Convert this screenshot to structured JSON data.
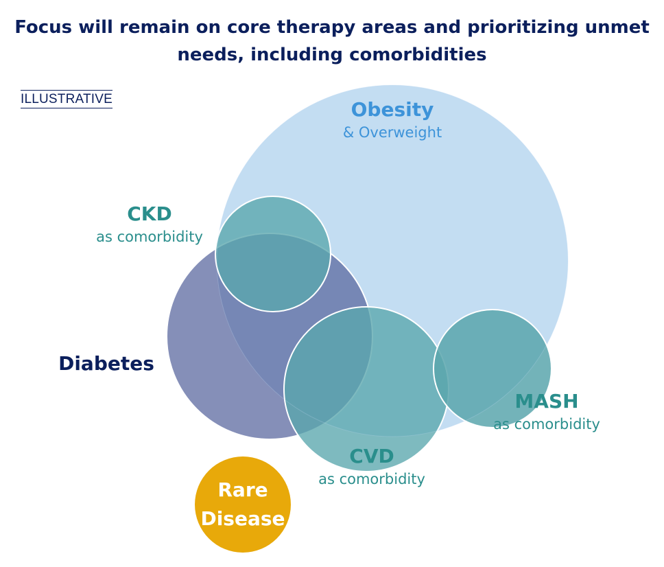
{
  "title": "Focus will remain on core therapy areas and prioritizing unmet needs, including comorbidities",
  "tag": "ILLUSTRATIVE",
  "areas": {
    "obesity": {
      "name": "Obesity",
      "sub": "& Overweight"
    },
    "ckd": {
      "name": "CKD",
      "sub": "as comorbidity"
    },
    "diabetes": {
      "name": "Diabetes"
    },
    "cvd": {
      "name": "CVD",
      "sub": "as comorbidity"
    },
    "mash": {
      "name": "MASH",
      "sub": "as comorbidity"
    },
    "rare": {
      "line1": "Rare",
      "line2": "Disease"
    }
  },
  "colors": {
    "obesity": "#c3ddf2",
    "diabetes": "#5c6aa0",
    "comorbidity": "#6fb3b8",
    "rare": "#e8a90a",
    "navy": "#0b1f5c",
    "teal": "#2a8e8c",
    "blue": "#3d93d9"
  }
}
